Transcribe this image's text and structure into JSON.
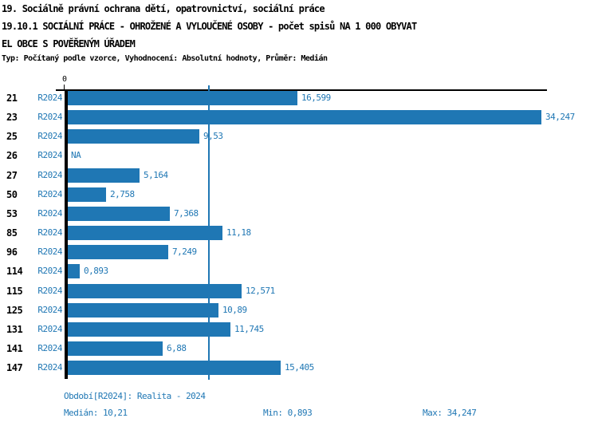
{
  "title": {
    "line1": "19. Sociálně právní ochrana dětí, opatrovnictví, sociální práce",
    "line2": "19.10.1 SOCIÁLNÍ PRÁCE - OHROŽENÉ A VYLOUČENÉ OSOBY - počet spisů NA 1 000 OBYVAT",
    "line3": "EL OBCE S POVĚŘENÝM ÚŘADEM",
    "meta": "Typ: Počítaný podle vzorce, Vyhodnocení: Absolutní hodnoty, Průměr: Medián"
  },
  "chart_data": {
    "type": "bar",
    "orientation": "horizontal",
    "series_label": "R2024",
    "axis_zero_label": "0",
    "categories": [
      "21",
      "23",
      "25",
      "26",
      "27",
      "50",
      "53",
      "85",
      "96",
      "114",
      "115",
      "125",
      "131",
      "141",
      "147"
    ],
    "values": [
      16.599,
      34.247,
      9.53,
      null,
      5.164,
      2.758,
      7.368,
      11.18,
      7.249,
      0.893,
      12.571,
      10.89,
      11.745,
      6.88,
      15.405
    ],
    "value_labels": [
      "16,599",
      "34,247",
      "9,53",
      "NA",
      "5,164",
      "2,758",
      "7,368",
      "11,18",
      "7,249",
      "0,893",
      "12,571",
      "10,89",
      "11,745",
      "6,88",
      "15,405"
    ],
    "median": 10.21,
    "xlim": [
      0,
      34.35
    ],
    "grid": false,
    "legend": "none",
    "bar_color": "#1f77b4",
    "median_line_color": "#1f77b4",
    "axis_color": "#000000"
  },
  "footer": {
    "period": "Období[R2024]: Realita - 2024",
    "median": "Medián: 10,21",
    "min": "Min: 0,893",
    "max": "Max: 34,247"
  }
}
